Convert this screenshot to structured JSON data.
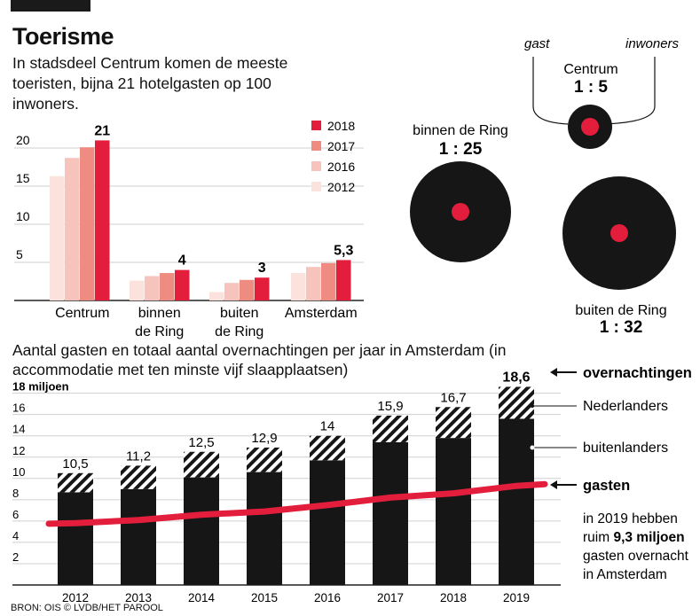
{
  "header": {
    "title": "Toerisme",
    "subtitle": "In stadsdeel Centrum komen de meeste toeristen, bijna 21 hotelgasten op 100 inwoners.",
    "chart2_caption": "Aantal gasten en totaal aantal overnachtingen per jaar in Amsterdam (in accommodatie met ten minste vijf slaapplaatsen)",
    "source": "BRON: OIS © LVDB/HET PAROOL"
  },
  "colors": {
    "y2018": "#e31e3c",
    "y2017": "#ee8c82",
    "y2016": "#f7c4bd",
    "y2012": "#fbe2dc",
    "black": "#161616",
    "red": "#e31e3c"
  },
  "chart_data": [
    {
      "type": "bar",
      "title": "",
      "categories": [
        "Centrum",
        "binnen de Ring",
        "buiten de Ring",
        "Amsterdam"
      ],
      "category_lines": [
        [
          "Centrum"
        ],
        [
          "binnen",
          "de Ring"
        ],
        [
          "buiten",
          "de Ring"
        ],
        [
          "Amsterdam"
        ]
      ],
      "series": [
        {
          "name": "2012",
          "values": [
            16.3,
            2.6,
            1.1,
            3.6
          ]
        },
        {
          "name": "2016",
          "values": [
            18.7,
            3.2,
            2.3,
            4.4
          ]
        },
        {
          "name": "2017",
          "values": [
            20.1,
            3.6,
            2.7,
            4.9
          ]
        },
        {
          "name": "2018",
          "values": [
            21,
            4,
            3,
            5.3
          ]
        }
      ],
      "value_labels": [
        "21",
        "4",
        "3",
        "5,3"
      ],
      "yticks": [
        "5",
        "10",
        "15",
        "20"
      ],
      "ylim": [
        0,
        22
      ],
      "legend": [
        "2018",
        "2017",
        "2016",
        "2012"
      ],
      "legend_position": "top-right",
      "grid": true
    },
    {
      "type": "bar",
      "title": "",
      "ylabel": "18 miljoen",
      "categories": [
        "2012",
        "2013",
        "2014",
        "2015",
        "2016",
        "2017",
        "2018",
        "2019"
      ],
      "series": [
        {
          "name": "buitenlanders",
          "values": [
            8.7,
            9.0,
            10.1,
            10.6,
            11.7,
            13.4,
            13.8,
            15.6
          ]
        },
        {
          "name": "Nederlanders",
          "values": [
            1.8,
            2.2,
            2.4,
            2.3,
            2.3,
            2.5,
            2.9,
            3.0
          ]
        },
        {
          "name": "gasten",
          "type": "line",
          "values": [
            5.8,
            6.1,
            6.6,
            6.9,
            7.5,
            8.2,
            8.6,
            9.3
          ]
        }
      ],
      "total_labels": [
        "10,5",
        "11,2",
        "12,5",
        "12,9",
        "14",
        "15,9",
        "16,7",
        "18,6"
      ],
      "yticks": [
        "2",
        "4",
        "6",
        "8",
        "10",
        "12",
        "14",
        "16"
      ],
      "ylim": [
        0,
        18
      ],
      "grid": true,
      "annotations": {
        "overnachtingen": "overnachtingen",
        "nederlanders": "Nederlanders",
        "buitenlanders": "buitenlanders",
        "gasten": "gasten",
        "note_line1": "in 2019 hebben",
        "note_line2_a": "ruim ",
        "note_line2_b": "9,3 miljoen",
        "note_line3": "gasten overnacht",
        "note_line4": "in Amsterdam"
      }
    },
    {
      "type": "diagram",
      "header_left": "gast",
      "header_right": "inwoners",
      "items": [
        {
          "name": "Centrum",
          "ratio": "1 : 5",
          "ratio_value": 5
        },
        {
          "name": "binnen de Ring",
          "ratio": "1 : 25",
          "ratio_value": 25
        },
        {
          "name": "buiten de Ring",
          "ratio": "1 : 32",
          "ratio_value": 32
        }
      ]
    }
  ]
}
